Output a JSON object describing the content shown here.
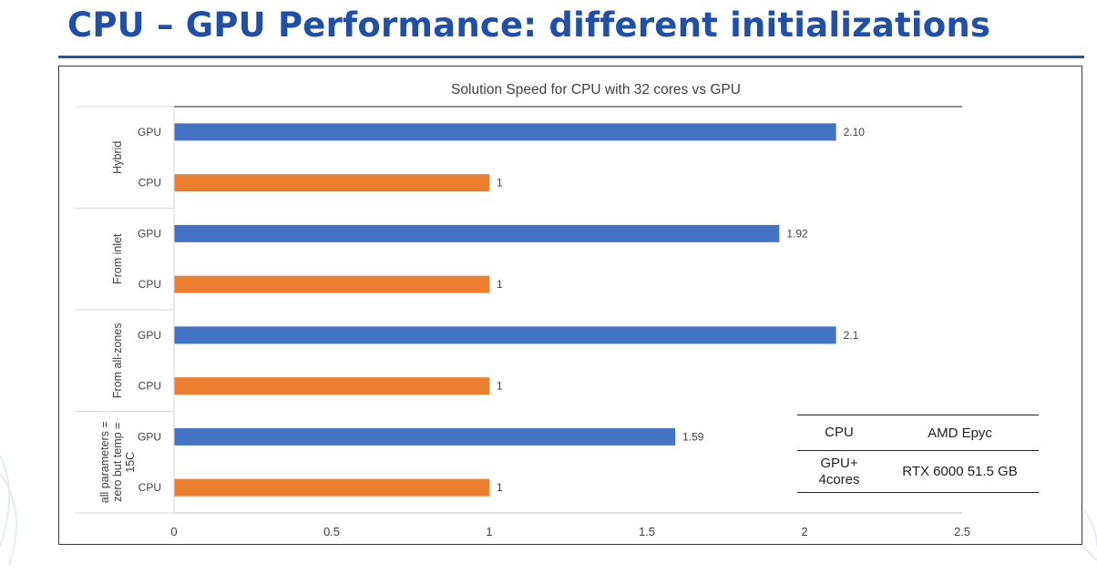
{
  "slide": {
    "title": "CPU – GPU Performance: different initializations"
  },
  "chart_data": {
    "type": "bar",
    "orientation": "horizontal",
    "title": "Solution Speed for CPU with 32 cores vs GPU",
    "xlim": [
      0,
      2.5
    ],
    "xticks": [
      "0",
      "0.5",
      "1",
      "1.5",
      "2",
      "2.5"
    ],
    "grid": false,
    "legend": "none",
    "colors": {
      "GPU": "#4472c4",
      "CPU": "#ed7d31"
    },
    "groups": [
      {
        "label": "Hybrid",
        "bars": [
          {
            "category": "GPU",
            "value": 2.1,
            "data_label": "2.10"
          },
          {
            "category": "CPU",
            "value": 1,
            "data_label": "1"
          }
        ]
      },
      {
        "label": "From inlet",
        "bars": [
          {
            "category": "GPU",
            "value": 1.92,
            "data_label": "1.92"
          },
          {
            "category": "CPU",
            "value": 1,
            "data_label": "1"
          }
        ]
      },
      {
        "label": "From all-zones",
        "bars": [
          {
            "category": "GPU",
            "value": 2.1,
            "data_label": "2.1"
          },
          {
            "category": "CPU",
            "value": 1,
            "data_label": "1"
          }
        ]
      },
      {
        "label": "all parameters = zero but temp = 15C",
        "bars": [
          {
            "category": "GPU",
            "value": 1.59,
            "data_label": "1.59"
          },
          {
            "category": "CPU",
            "value": 1,
            "data_label": "1"
          }
        ]
      }
    ]
  },
  "spec_table": {
    "rows": [
      {
        "key": "CPU",
        "value": "AMD Epyc"
      },
      {
        "key": "GPU+ 4cores",
        "value": "RTX 6000 51.5 GB"
      }
    ]
  }
}
